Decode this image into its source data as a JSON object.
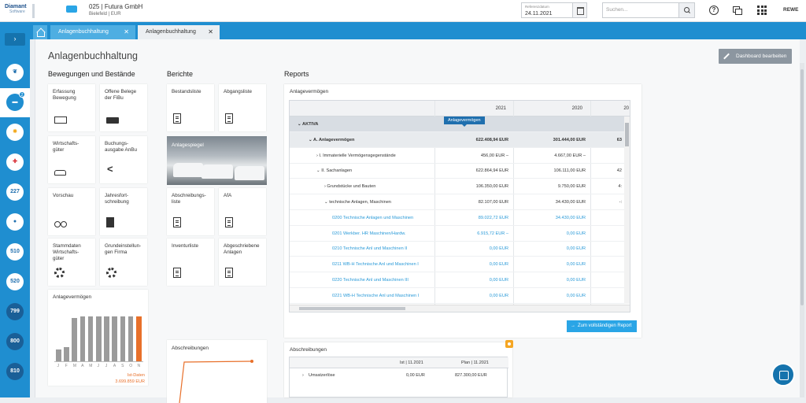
{
  "header": {
    "logo_line1": "Diamant",
    "logo_line2": "Software",
    "company_name": "025 | Futura GmbH",
    "company_sub": "Bielefeld | EUR",
    "refdate_label": "Referenzdatum",
    "refdate_value": "24.11.2021",
    "search_placeholder": "Suchen...",
    "help_glyph": "?",
    "user": "REWE"
  },
  "sidebar": {
    "toggle": "›",
    "items": [
      {
        "icon": "leaf-icon",
        "label": ""
      },
      {
        "icon": "company-icon",
        "label": "",
        "badge": "2",
        "active": true
      },
      {
        "icon": "sun-icon",
        "label": ""
      },
      {
        "icon": "medical-icon",
        "label": ""
      },
      {
        "icon": "",
        "label": "227"
      },
      {
        "icon": "head-icon",
        "label": ""
      },
      {
        "icon": "",
        "label": "510"
      },
      {
        "icon": "",
        "label": "520"
      },
      {
        "icon": "",
        "label": "799"
      },
      {
        "icon": "",
        "label": "800"
      },
      {
        "icon": "",
        "label": "810"
      }
    ]
  },
  "tabs": [
    {
      "label": "Anlagenbuchhaltung",
      "close": "✕"
    },
    {
      "label": "Anlagenbuchhaltung",
      "close": "✕"
    }
  ],
  "page": {
    "title": "Anlagenbuchhaltung",
    "edit_button": "Dashboard bearbeiten"
  },
  "movements": {
    "title": "Bewegungen und Bestände",
    "tiles": [
      {
        "label": "Erfassung\nBewegung",
        "icon": "keyboard-icon"
      },
      {
        "label": "Offene Belege\nder FiBu",
        "icon": "truck-icon"
      },
      {
        "label": "Wirtschafts-\ngüter",
        "icon": "car-icon"
      },
      {
        "label": "Buchungs-\nausgabe AnBu",
        "icon": "share-icon"
      },
      {
        "label": "Vorschau",
        "icon": "binoculars-icon"
      },
      {
        "label": "Jahresfort-\nschreibung",
        "icon": "calculator-icon"
      },
      {
        "label": "Stammdaten\nWirtschafts-\ngüter",
        "icon": "gear-icon"
      },
      {
        "label": "Grundeinstellun-\ngen Firma",
        "icon": "gear-icon"
      }
    ]
  },
  "berichte": {
    "title": "Berichte",
    "tiles": [
      {
        "label": "Bestandsliste"
      },
      {
        "label": "Abgangsliste"
      },
      {
        "label": "Anlagespiegel"
      },
      {
        "label": "Abschreibungs-\nliste"
      },
      {
        "label": "AfA"
      },
      {
        "label": "Inventurliste"
      },
      {
        "label": "Abgeschriebene\nAnlagen"
      }
    ]
  },
  "mini_chart": {
    "title": "Anlagevermögen",
    "months": [
      "J",
      "F",
      "M",
      "A",
      "M",
      "J",
      "J",
      "A",
      "S",
      "O",
      "N"
    ],
    "values": [
      0.25,
      0.3,
      0.92,
      0.95,
      0.95,
      0.95,
      0.95,
      0.95,
      0.95,
      0.95,
      0.95
    ],
    "highlight_index": 10,
    "ist_label": "Ist-Daten",
    "ist_value": "3.699.859 EUR",
    "bar_color": "#9b9b9b",
    "highlight_color": "#e8702a"
  },
  "abschreibungen_small": {
    "title": "Abschreibungen"
  },
  "reports": {
    "section_title": "Reports",
    "tag": "Anlagevermögen",
    "card_title": "Anlagevermögen",
    "years": [
      "2021",
      "2020",
      "20"
    ],
    "rows": [
      {
        "label": "AKTIVA",
        "v1": "",
        "v2": "",
        "v3": "",
        "level": 0,
        "type": "grp"
      },
      {
        "label": "A. Anlagevermögen",
        "v1": "622.408,94 EUR",
        "v2": "301.444,00 EUR",
        "v3": "63",
        "level": 1,
        "type": "grp2"
      },
      {
        "label": "I. Immaterielle Vermögensgegenstände",
        "v1": "456,00 EUR –",
        "v2": "4.667,00 EUR –",
        "v3": "",
        "level": 2,
        "type": ""
      },
      {
        "label": "II. Sachanlagen",
        "v1": "622.864,94 EUR",
        "v2": "106.111,00 EUR",
        "v3": "42",
        "level": 2,
        "type": ""
      },
      {
        "label": "Grundstücke und Bauten",
        "v1": "106.350,00 EUR",
        "v2": "9.750,00 EUR",
        "v3": "4:",
        "level": 3,
        "type": ""
      },
      {
        "label": "technische Anlagen, Maschinen",
        "v1": "82.107,00 EUR",
        "v2": "34.430,00 EUR",
        "v3": "-:",
        "level": 3,
        "type": ""
      },
      {
        "label": "0200 Technische Anlagen und Maschinen",
        "v1": "89.022,72 EUR",
        "v2": "34.430,00 EUR",
        "v3": "",
        "level": 4,
        "type": "blue"
      },
      {
        "label": "0201 Werkber. HR Maschinen/Hardw.",
        "v1": "6.915,72 EUR –",
        "v2": "0,00 EUR",
        "v3": "",
        "level": 4,
        "type": "blue"
      },
      {
        "label": "0210 Technische Anl und Maschinen II",
        "v1": "0,00 EUR",
        "v2": "0,00 EUR",
        "v3": "",
        "level": 4,
        "type": "blue"
      },
      {
        "label": "0211 WB-H Technische Anl und Maschinen I",
        "v1": "0,00 EUR",
        "v2": "0,00 EUR",
        "v3": "",
        "level": 4,
        "type": "blue"
      },
      {
        "label": "0220 Technische Anl und Maschinen III",
        "v1": "0,00 EUR",
        "v2": "0,00 EUR",
        "v3": "",
        "level": 4,
        "type": "blue"
      },
      {
        "label": "0221 WB-H Technische Anl und Maschinen I",
        "v1": "0,00 EUR",
        "v2": "0,00 EUR",
        "v3": "",
        "level": 4,
        "type": "blue"
      }
    ],
    "full_report_button": "Zum vollständigen Report"
  },
  "abschreibungen": {
    "title": "Abschreibungen",
    "col1": "Ist | 11.2021",
    "col2": "Plan | 11.2021",
    "row_label": "Umsatzerlöse",
    "row_v1": "0,00 EUR",
    "row_v2": "827.300,00 EUR"
  }
}
